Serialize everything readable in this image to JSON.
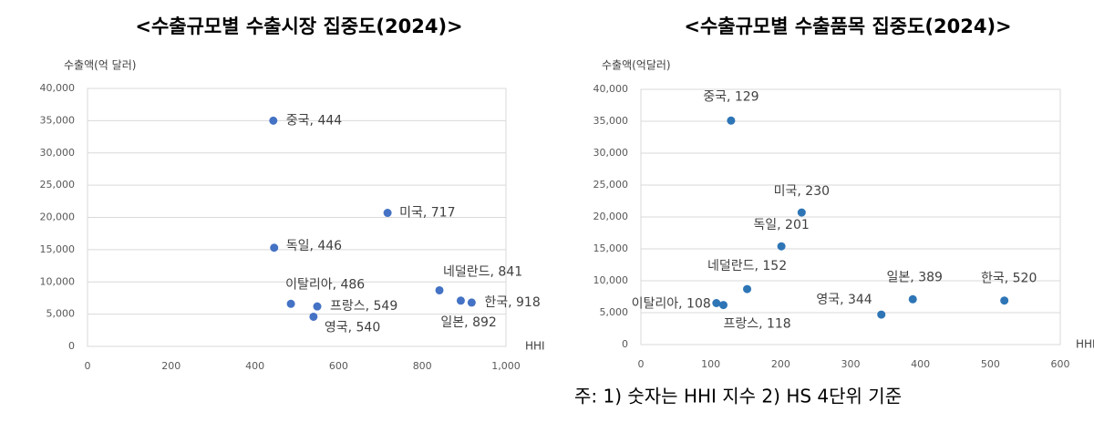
{
  "chart_data": [
    {
      "type": "scatter",
      "title": "<수출규모별 수출시장 집중도(2024)>",
      "y_label": "수출액(억 달러)",
      "x_label": "HHI",
      "color": "#4472c4",
      "x": [
        444,
        717,
        446,
        486,
        549,
        540,
        841,
        918,
        892
      ],
      "values": [
        35000,
        20700,
        15300,
        6600,
        6200,
        4600,
        8700,
        6800,
        7100
      ],
      "labels": [
        "중국, 444",
        "미국, 717",
        "독일, 446",
        "이탈리아, 486",
        "프랑스, 549",
        "영국, 540",
        "네덜란드, 841",
        "한국, 918",
        "일본, 892"
      ],
      "xlim": [
        0,
        1000
      ],
      "xticks": [
        0,
        200,
        400,
        600,
        800,
        {
          "value": 1000,
          "label": "1,000"
        }
      ],
      "ylim": [
        0,
        40000
      ],
      "yticks": [
        0,
        {
          "value": 5000,
          "label": "5,000"
        },
        {
          "value": 10000,
          "label": "10,000"
        },
        {
          "value": 15000,
          "label": "15,000"
        },
        {
          "value": 20000,
          "label": "20,000"
        },
        {
          "value": 25000,
          "label": "25,000"
        },
        {
          "value": 30000,
          "label": "30,000"
        },
        {
          "value": 35000,
          "label": "35,000"
        },
        {
          "value": 40000,
          "label": "40,000"
        }
      ],
      "grid": true
    },
    {
      "type": "scatter",
      "title": "<수출규모별 수출품목 집중도(2024)>",
      "y_label": "수출액(억달러)",
      "x_label": "HHI",
      "color": "#2e75b6",
      "x": [
        129,
        230,
        201,
        152,
        108,
        118,
        344,
        389,
        520
      ],
      "values": [
        35100,
        20700,
        15400,
        8700,
        6500,
        6200,
        4700,
        7100,
        6900
      ],
      "labels": [
        "중국, 129",
        "미국, 230",
        "독일, 201",
        "네덜란드, 152",
        "이탈리아, 108",
        "프랑스, 118",
        "영국, 344",
        "일본, 389",
        "한국, 520"
      ],
      "xlim": [
        0,
        600
      ],
      "xticks": [
        0,
        100,
        200,
        300,
        400,
        500,
        600
      ],
      "ylim": [
        0,
        40000
      ],
      "yticks": [
        0,
        {
          "value": 5000,
          "label": "5,000"
        },
        {
          "value": 10000,
          "label": "10,000"
        },
        {
          "value": 15000,
          "label": "15,000"
        },
        {
          "value": 20000,
          "label": "20,000"
        },
        {
          "value": 25000,
          "label": "25,000"
        },
        {
          "value": 30000,
          "label": "30,000"
        },
        {
          "value": 35000,
          "label": "35,000"
        },
        {
          "value": 40000,
          "label": "40,000"
        }
      ],
      "grid": true
    }
  ],
  "note": "주: 1) 숫자는 HHI 지수 2) HS 4단위 기준"
}
